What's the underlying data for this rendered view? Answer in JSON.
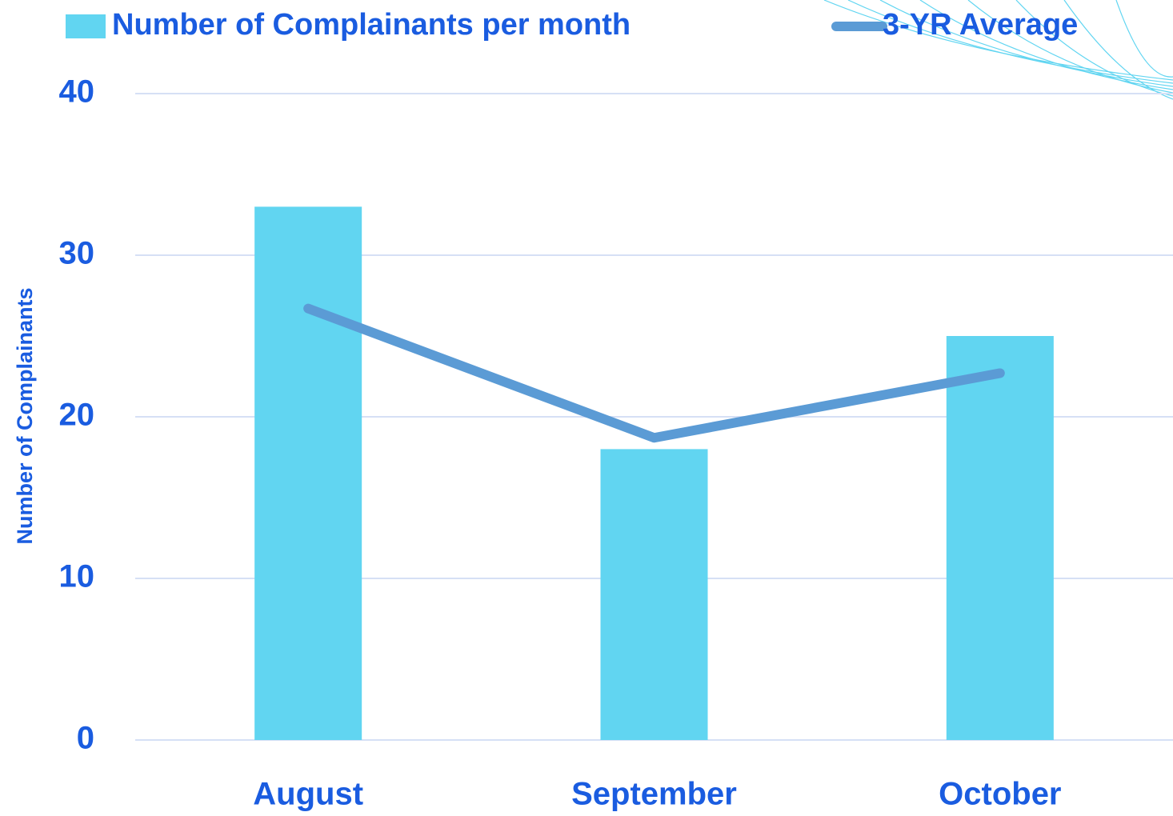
{
  "chart_data": {
    "type": "bar",
    "categories": [
      "August",
      "September",
      "October"
    ],
    "series": [
      {
        "name": "Number of Complainants per month",
        "type": "bar",
        "color": "#61d5f1",
        "values": [
          33,
          18,
          25
        ]
      },
      {
        "name": "3-YR Average",
        "type": "line",
        "color": "#5b9bd5",
        "values": [
          26.7,
          18.7,
          22.7
        ]
      }
    ],
    "y_label": "Number of Complainants",
    "ylim": [
      0,
      40
    ],
    "yticks": [
      0,
      10,
      20,
      30,
      40
    ],
    "grid": true,
    "legend": "top"
  }
}
